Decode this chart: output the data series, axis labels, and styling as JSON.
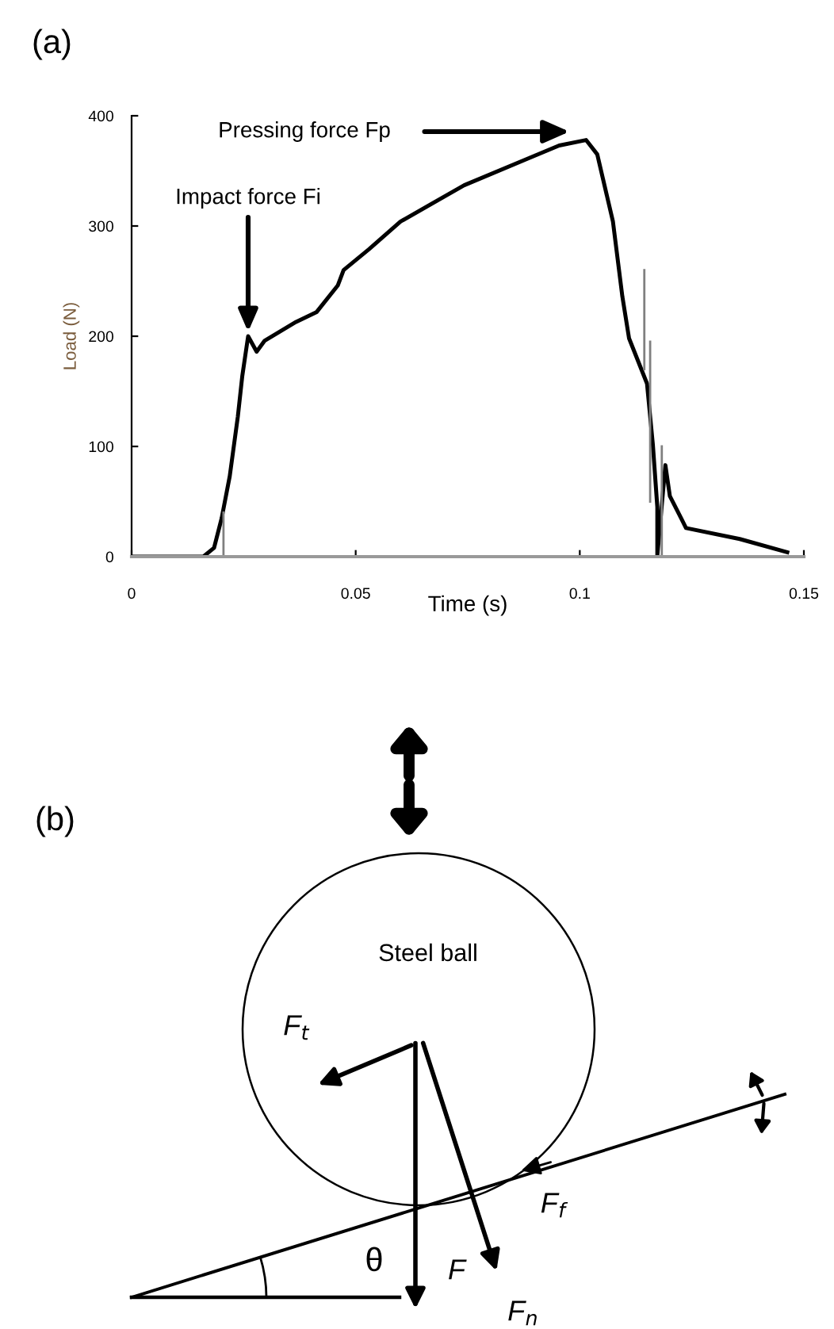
{
  "chart_data": [
    {
      "type": "line",
      "xlabel": "Time (s)",
      "ylabel": "Load (N)",
      "xlim": [
        0,
        0.15
      ],
      "ylim": [
        0,
        400
      ],
      "xticks": [
        0,
        0.05,
        0.1,
        0.15
      ],
      "yticks": [
        0,
        100,
        200,
        300,
        400
      ],
      "grid": false,
      "legend": false,
      "annotations": [
        "(a)",
        "Pressing force Fp",
        {
          "text": "Impact force Fi",
          "x": 0.026,
          "y": 200
        }
      ],
      "series": [
        {
          "color": "#000000",
          "x": [
            0,
            0.016,
            0.0184,
            0.0201,
            0.0219,
            0.0237,
            0.0247,
            0.026,
            0.0279,
            0.0297,
            0.0367,
            0.0413,
            0.046,
            0.0473,
            0.053,
            0.06,
            0.0742,
            0.0883,
            0.0954,
            0.1014,
            0.1039,
            0.1074,
            0.1095,
            0.111,
            0.115,
            0.1163,
            0.1173,
            0.1173,
            0.1191,
            0.1201,
            0.1226,
            0.1237,
            0.1357,
            0.1463
          ],
          "values": [
            0,
            0,
            8,
            35,
            73,
            127,
            164,
            200,
            186,
            196,
            213,
            222,
            246,
            260,
            279,
            304,
            337,
            361,
            373,
            378,
            365,
            304,
            236,
            198,
            157,
            102,
            45,
            1,
            83,
            55,
            35,
            26,
            16,
            4
          ]
        },
        {
          "color": "#808080",
          "x": [
            0.0205,
            0.0205,
            0.11,
            0.1144,
            0.1144,
            0.115,
            0.1157,
            0.1157,
            0.117,
            0.1183,
            0.1183
          ],
          "values": [
            0,
            40,
            null,
            260,
            170,
            null,
            195,
            50,
            null,
            0,
            100
          ]
        }
      ]
    },
    {
      "type": "other",
      "annotations": [
        "(b)",
        "Steel ball",
        "F$_{t}$",
        "F$_{f}$",
        "F",
        "F$_{n}$",
        "θ"
      ]
    }
  ]
}
